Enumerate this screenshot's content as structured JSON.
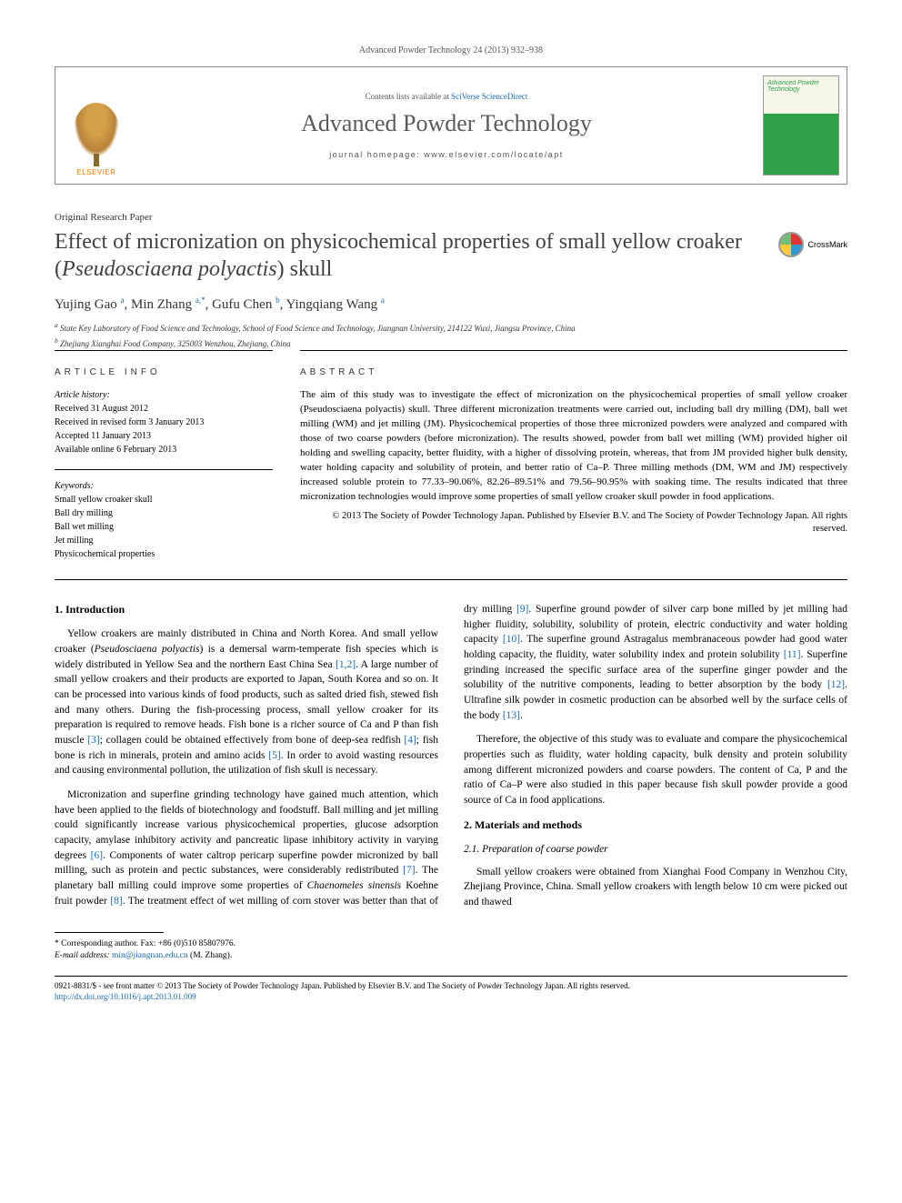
{
  "journal_ref": "Advanced Powder Technology 24 (2013) 932–938",
  "header": {
    "contents_prefix": "Contents lists available at ",
    "contents_link": "SciVerse ScienceDirect",
    "journal_name": "Advanced Powder Technology",
    "homepage_prefix": "journal homepage: ",
    "homepage_url": "www.elsevier.com/locate/apt",
    "publisher_logo_text": "ELSEVIER",
    "cover_text": "Advanced Powder Technology"
  },
  "paper_type": "Original Research Paper",
  "title_html": "Effect of micronization on physicochemical properties of small yellow croaker (<em>Pseudosciaena polyactis</em>) skull",
  "crossmark_label": "CrossMark",
  "authors_html": "Yujing Gao <sup>a</sup>, Min Zhang <sup>a,*</sup>, Gufu Chen <sup>b</sup>, Yingqiang Wang <sup>a</sup>",
  "affiliations": {
    "a": "State Key Laboratory of Food Science and Technology, School of Food Science and Technology, Jiangnan University, 214122 Wuxi, Jiangsu Province, China",
    "b": "Zhejiang Xianghai Food Company, 325003 Wenzhou, Zhejiang, China"
  },
  "info": {
    "label": "ARTICLE INFO",
    "history_label": "Article history:",
    "received": "Received 31 August 2012",
    "revised": "Received in revised form 3 January 2013",
    "accepted": "Accepted 11 January 2013",
    "online": "Available online 6 February 2013",
    "keywords_label": "Keywords:",
    "keywords": [
      "Small yellow croaker skull",
      "Ball dry milling",
      "Ball wet milling",
      "Jet milling",
      "Physicochemical properties"
    ]
  },
  "abstract": {
    "label": "ABSTRACT",
    "text": "The aim of this study was to investigate the effect of micronization on the physicochemical properties of small yellow croaker (Pseudosciaena polyactis) skull. Three different micronization treatments were carried out, including ball dry milling (DM), ball wet milling (WM) and jet milling (JM). Physicochemical properties of those three micronized powders were analyzed and compared with those of two coarse powders (before micronization). The results showed, powder from ball wet milling (WM) provided higher oil holding and swelling capacity, better fluidity, with a higher of dissolving protein, whereas, that from JM provided higher bulk density, water holding capacity and solubility of protein, and better ratio of Ca–P. Three milling methods (DM, WM and JM) respectively increased soluble protein to 77.33–90.06%, 82.26–89.51% and 79.56–90.95% with soaking time. The results indicated that three micronization technologies would improve some properties of small yellow croaker skull powder in food applications.",
    "copyright": "© 2013 The Society of Powder Technology Japan. Published by Elsevier B.V. and The Society of Powder Technology Japan. All rights reserved."
  },
  "sections": {
    "intro_heading": "1. Introduction",
    "intro_p1_html": "Yellow croakers are mainly distributed in China and North Korea. And small yellow croaker (<em>Pseudosciaena polyactis</em>) is a demersal warm-temperate fish species which is widely distributed in Yellow Sea and the northern East China Sea <a href='#'>[1,2]</a>. A large number of small yellow croakers and their products are exported to Japan, South Korea and so on. It can be processed into various kinds of food products, such as salted dried fish, stewed fish and many others. During the fish-processing process, small yellow croaker for its preparation is required to remove heads. Fish bone is a richer source of Ca and P than fish muscle <a href='#'>[3]</a>; collagen could be obtained effectively from bone of deep-sea redfish <a href='#'>[4]</a>; fish bone is rich in minerals, protein and amino acids <a href='#'>[5]</a>. In order to avoid wasting resources and causing environmental pollution, the utilization of fish skull is necessary.",
    "intro_p2_html": "Micronization and superfine grinding technology have gained much attention, which have been applied to the fields of biotechnology and foodstuff. Ball milling and jet milling could significantly increase various physicochemical properties, glucose adsorption capacity, amylase inhibitory activity and pancreatic lipase inhibitory activity in varying degrees <a href='#'>[6]</a>. Components of water caltrop pericarp superfine powder micronized by ball milling, such as protein and pectic substances, were considerably redistributed <a href='#'>[7]</a>. The planetary ball milling could improve some properties of <em>Chaenomeles sinensis</em> Koehne fruit powder <a href='#'>[8]</a>. The treatment effect of wet milling of corn stover was better than that of dry milling <a href='#'>[9]</a>. Superfine ground powder of silver carp bone milled by jet milling had higher fluidity, solubility, solubility of protein, electric conductivity and water holding capacity <a href='#'>[10]</a>. The superfine ground Astragalus membranaceous powder had good water holding capacity, the fluidity, water solubility index and protein solubility <a href='#'>[11]</a>. Superfine grinding increased the specific surface area of the superfine ginger powder and the solubility of the nutritive components, leading to better absorption by the body <a href='#'>[12]</a>. Ultrafine silk powder in cosmetic production can be absorbed well by the surface cells of the body <a href='#'>[13]</a>.",
    "intro_p3": "Therefore, the objective of this study was to evaluate and compare the physicochemical properties such as fluidity, water holding capacity, bulk density and protein solubility among different micronized powders and coarse powders. The content of Ca, P and the ratio of Ca–P were also studied in this paper because fish skull powder provide a good source of Ca in food applications.",
    "methods_heading": "2. Materials and methods",
    "methods_sub1": "2.1. Preparation of coarse powder",
    "methods_p1": "Small yellow croakers were obtained from Xianghai Food Company in Wenzhou City, Zhejiang Province, China. Small yellow croakers with length below 10 cm were picked out and thawed"
  },
  "footnote": {
    "corr_label": "* Corresponding author. Fax: +86 (0)510 85807976.",
    "email_label": "E-mail address:",
    "email": "min@jiangnan.edu.cn",
    "email_suffix": "(M. Zhang)."
  },
  "bottom": {
    "line1": "0921-8831/$ - see front matter © 2013 The Society of Powder Technology Japan. Published by Elsevier B.V. and The Society of Powder Technology Japan. All rights reserved.",
    "doi": "http://dx.doi.org/10.1016/j.apt.2013.01.009"
  },
  "colors": {
    "link": "#1768b3",
    "text": "#000000",
    "accent_orange": "#ff7a00",
    "cover_green": "#2fa04a"
  }
}
